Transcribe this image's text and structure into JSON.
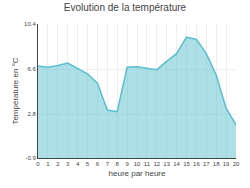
{
  "chart_data": {
    "type": "area",
    "title": "Evolution de la température",
    "x_label": "heure par heure",
    "y_label": "Température en °C",
    "x": [
      0,
      1,
      2,
      3,
      4,
      5,
      6,
      7,
      8,
      9,
      10,
      11,
      12,
      13,
      14,
      15,
      16,
      17,
      18,
      19,
      20
    ],
    "values": [
      6.85,
      6.75,
      6.9,
      7.1,
      6.65,
      6.2,
      5.4,
      3.15,
      3.0,
      6.75,
      6.8,
      6.7,
      6.55,
      7.25,
      7.9,
      9.3,
      9.1,
      7.9,
      6.1,
      3.3,
      1.9
    ],
    "color": "#5bbfcf",
    "xlim": [
      0,
      20
    ],
    "xticks": [
      0,
      1,
      2,
      3,
      4,
      5,
      6,
      7,
      8,
      9,
      10,
      11,
      12,
      13,
      14,
      15,
      16,
      17,
      18,
      19,
      20
    ],
    "ylim": [
      -0.9,
      10.4
    ],
    "yticks": [
      -0.9,
      2.8,
      6.6,
      10.4
    ],
    "grid": true
  }
}
